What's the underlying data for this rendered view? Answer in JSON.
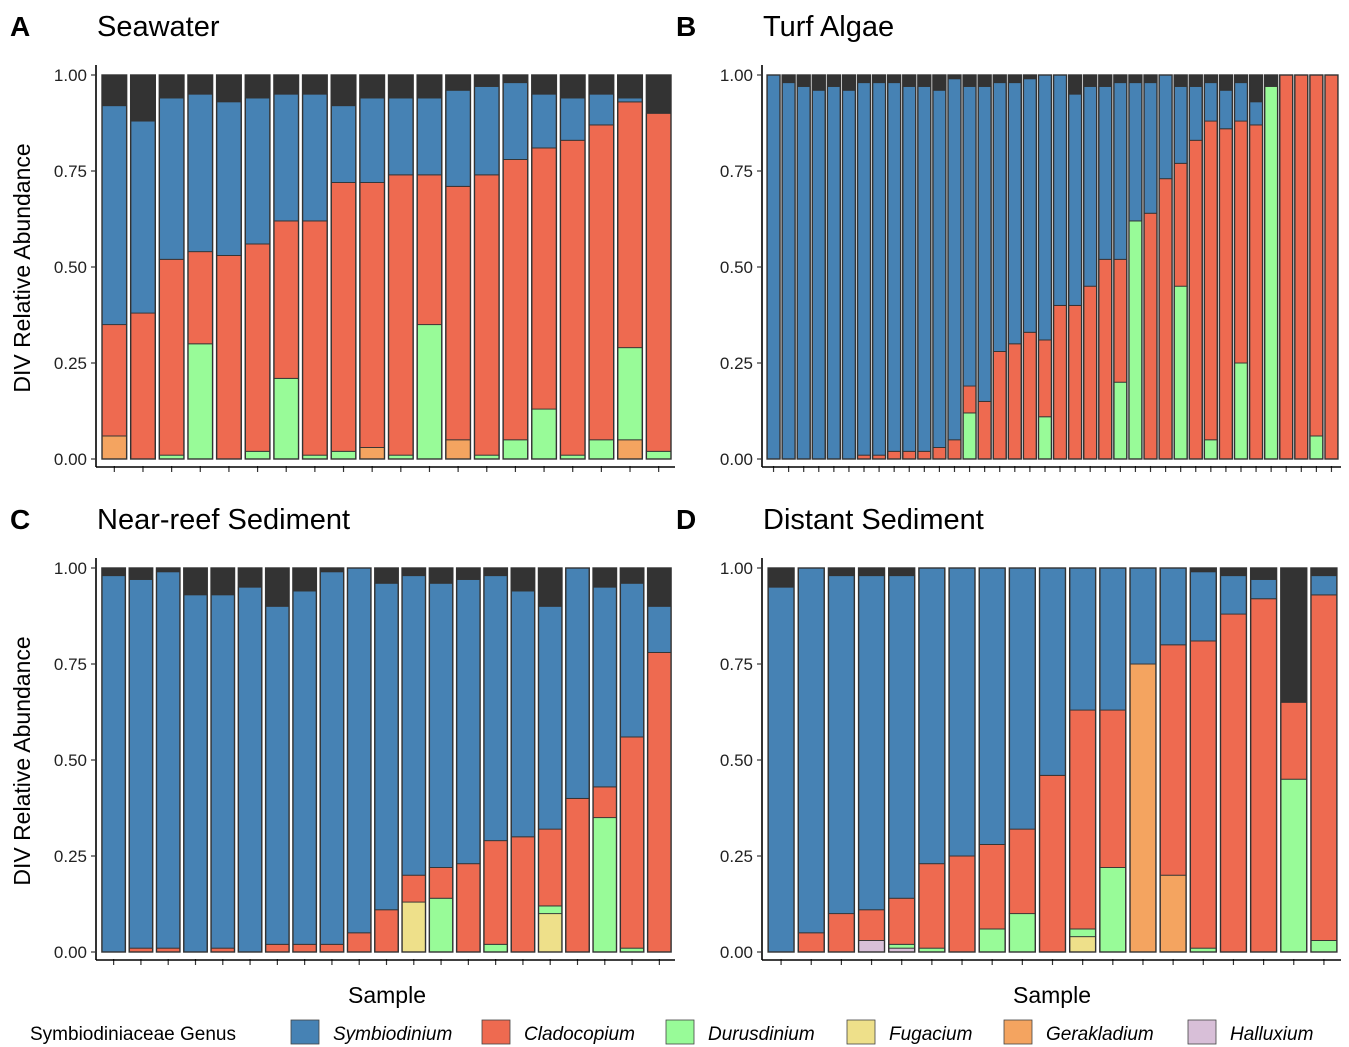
{
  "legend": {
    "title": "Symbiodiniaceae Genus",
    "items": [
      {
        "name": "Symbiodinium",
        "color": "#4682B4"
      },
      {
        "name": "Cladocopium",
        "color": "#EE6A50"
      },
      {
        "name": "Durusdinium",
        "color": "#98FB98"
      },
      {
        "name": "Fugacium",
        "color": "#EEE08A"
      },
      {
        "name": "Gerakladium",
        "color": "#F4A460"
      },
      {
        "name": "Halluxium",
        "color": "#D8BFD8"
      }
    ]
  },
  "chart_data": [
    {
      "panel": "A",
      "title": "Seawater",
      "type": "bar",
      "stacked": true,
      "ylabel": "DIV Relative Abundance",
      "xlabel": "",
      "ylim": [
        0,
        1
      ],
      "yticks": [
        "0.00",
        "0.25",
        "0.50",
        "0.75",
        "1.00"
      ],
      "unassigned_color": "#333333",
      "series": [
        "Gerakladium",
        "Durusdinium",
        "Cladocopium",
        "Symbiodinium"
      ],
      "samples": [
        [
          0.06,
          0.0,
          0.29,
          0.57
        ],
        [
          0.0,
          0.0,
          0.38,
          0.5
        ],
        [
          0.0,
          0.01,
          0.51,
          0.42
        ],
        [
          0.0,
          0.3,
          0.24,
          0.41
        ],
        [
          0.0,
          0.0,
          0.53,
          0.4
        ],
        [
          0.0,
          0.02,
          0.54,
          0.38
        ],
        [
          0.0,
          0.21,
          0.41,
          0.33
        ],
        [
          0.0,
          0.01,
          0.61,
          0.33
        ],
        [
          0.0,
          0.02,
          0.7,
          0.2
        ],
        [
          0.03,
          0.0,
          0.69,
          0.22
        ],
        [
          0.0,
          0.01,
          0.73,
          0.2
        ],
        [
          0.0,
          0.35,
          0.39,
          0.2
        ],
        [
          0.05,
          0.0,
          0.66,
          0.25
        ],
        [
          0.0,
          0.01,
          0.73,
          0.23
        ],
        [
          0.0,
          0.05,
          0.73,
          0.2
        ],
        [
          0.0,
          0.13,
          0.68,
          0.14
        ],
        [
          0.0,
          0.01,
          0.82,
          0.11
        ],
        [
          0.0,
          0.05,
          0.82,
          0.08
        ],
        [
          0.05,
          0.24,
          0.64,
          0.01
        ],
        [
          0.0,
          0.02,
          0.88,
          0.0
        ]
      ]
    },
    {
      "panel": "B",
      "title": "Turf Algae",
      "type": "bar",
      "stacked": true,
      "ylabel": "",
      "xlabel": "",
      "ylim": [
        0,
        1
      ],
      "yticks": [
        "0.00",
        "0.25",
        "0.50",
        "0.75",
        "1.00"
      ],
      "unassigned_color": "#333333",
      "series": [
        "Durusdinium",
        "Cladocopium",
        "Symbiodinium"
      ],
      "samples": [
        [
          0,
          0,
          1.0
        ],
        [
          0,
          0,
          0.98
        ],
        [
          0,
          0,
          0.97
        ],
        [
          0,
          0,
          0.96
        ],
        [
          0,
          0,
          0.97
        ],
        [
          0,
          0,
          0.96
        ],
        [
          0,
          0.01,
          0.97
        ],
        [
          0,
          0.01,
          0.97
        ],
        [
          0,
          0.02,
          0.96
        ],
        [
          0,
          0.02,
          0.95
        ],
        [
          0,
          0.02,
          0.95
        ],
        [
          0,
          0.03,
          0.93
        ],
        [
          0,
          0.05,
          0.94
        ],
        [
          0.12,
          0.07,
          0.78
        ],
        [
          0,
          0.15,
          0.82
        ],
        [
          0,
          0.28,
          0.7
        ],
        [
          0,
          0.3,
          0.68
        ],
        [
          0,
          0.33,
          0.66
        ],
        [
          0.11,
          0.2,
          0.69
        ],
        [
          0,
          0.4,
          0.6
        ],
        [
          0,
          0.4,
          0.55
        ],
        [
          0,
          0.45,
          0.52
        ],
        [
          0,
          0.52,
          0.45
        ],
        [
          0.2,
          0.32,
          0.46
        ],
        [
          0.62,
          0.0,
          0.36
        ],
        [
          0,
          0.64,
          0.34
        ],
        [
          0,
          0.73,
          0.27
        ],
        [
          0.45,
          0.32,
          0.2
        ],
        [
          0,
          0.83,
          0.14
        ],
        [
          0.05,
          0.83,
          0.1
        ],
        [
          0,
          0.86,
          0.1
        ],
        [
          0.25,
          0.63,
          0.1
        ],
        [
          0,
          0.87,
          0.06
        ],
        [
          0.97,
          0.0,
          0.0
        ],
        [
          0,
          1.0,
          0
        ],
        [
          0,
          1.0,
          0
        ],
        [
          0.06,
          0.94,
          0
        ],
        [
          0,
          1.0,
          0
        ]
      ]
    },
    {
      "panel": "C",
      "title": "Near-reef Sediment",
      "type": "bar",
      "stacked": true,
      "ylabel": "DIV Relative Abundance",
      "xlabel": "Sample",
      "ylim": [
        0,
        1
      ],
      "yticks": [
        "0.00",
        "0.25",
        "0.50",
        "0.75",
        "1.00"
      ],
      "unassigned_color": "#333333",
      "series": [
        "Fugacium",
        "Durusdinium",
        "Cladocopium",
        "Symbiodinium"
      ],
      "samples": [
        [
          0,
          0,
          0.0,
          0.98
        ],
        [
          0,
          0,
          0.01,
          0.96
        ],
        [
          0,
          0,
          0.01,
          0.98
        ],
        [
          0,
          0,
          0.0,
          0.93
        ],
        [
          0,
          0,
          0.01,
          0.92
        ],
        [
          0,
          0,
          0.0,
          0.95
        ],
        [
          0,
          0,
          0.02,
          0.88
        ],
        [
          0,
          0,
          0.02,
          0.92
        ],
        [
          0,
          0,
          0.02,
          0.97
        ],
        [
          0,
          0,
          0.05,
          0.95
        ],
        [
          0,
          0,
          0.11,
          0.85
        ],
        [
          0.13,
          0,
          0.07,
          0.78
        ],
        [
          0,
          0.14,
          0.08,
          0.74
        ],
        [
          0,
          0,
          0.23,
          0.74
        ],
        [
          0,
          0.02,
          0.27,
          0.69
        ],
        [
          0,
          0,
          0.3,
          0.64
        ],
        [
          0.1,
          0.02,
          0.2,
          0.58
        ],
        [
          0,
          0,
          0.4,
          0.6
        ],
        [
          0,
          0.35,
          0.08,
          0.52
        ],
        [
          0,
          0.01,
          0.55,
          0.4
        ],
        [
          0,
          0,
          0.78,
          0.12
        ]
      ]
    },
    {
      "panel": "D",
      "title": "Distant Sediment",
      "type": "bar",
      "stacked": true,
      "ylabel": "",
      "xlabel": "Sample",
      "ylim": [
        0,
        1
      ],
      "yticks": [
        "0.00",
        "0.25",
        "0.50",
        "0.75",
        "1.00"
      ],
      "unassigned_color": "#333333",
      "series": [
        "Halluxium",
        "Fugacium",
        "Gerakladium",
        "Durusdinium",
        "Cladocopium",
        "Symbiodinium"
      ],
      "samples": [
        [
          0,
          0,
          0,
          0,
          0.0,
          0.95
        ],
        [
          0,
          0,
          0,
          0,
          0.05,
          0.95
        ],
        [
          0,
          0,
          0,
          0,
          0.1,
          0.88
        ],
        [
          0.03,
          0,
          0,
          0,
          0.08,
          0.87
        ],
        [
          0.01,
          0,
          0,
          0.01,
          0.12,
          0.84
        ],
        [
          0,
          0,
          0,
          0.01,
          0.22,
          0.77
        ],
        [
          0,
          0,
          0,
          0,
          0.25,
          0.75
        ],
        [
          0,
          0,
          0,
          0.06,
          0.22,
          0.72
        ],
        [
          0,
          0,
          0,
          0.1,
          0.22,
          0.68
        ],
        [
          0,
          0,
          0,
          0,
          0.46,
          0.54
        ],
        [
          0,
          0.04,
          0,
          0.02,
          0.57,
          0.37
        ],
        [
          0,
          0,
          0,
          0.22,
          0.41,
          0.37
        ],
        [
          0,
          0,
          0.75,
          0,
          0.0,
          0.25
        ],
        [
          0,
          0,
          0.2,
          0,
          0.6,
          0.2
        ],
        [
          0,
          0,
          0,
          0.01,
          0.8,
          0.18
        ],
        [
          0,
          0,
          0,
          0,
          0.88,
          0.1
        ],
        [
          0,
          0,
          0,
          0,
          0.92,
          0.05
        ],
        [
          0,
          0,
          0,
          0.45,
          0.2,
          0.0
        ],
        [
          0,
          0,
          0,
          0.03,
          0.9,
          0.05
        ]
      ]
    }
  ]
}
